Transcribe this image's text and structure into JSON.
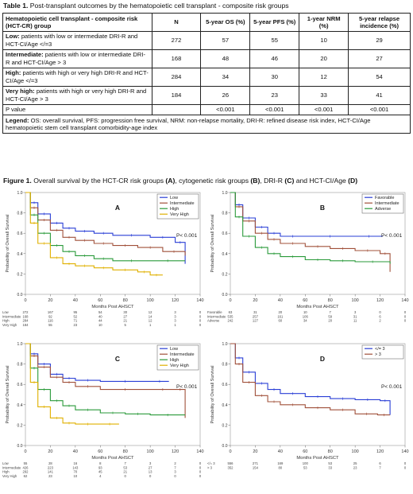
{
  "table": {
    "caption_label": "Table 1.",
    "caption_text": " Post-transplant outcomes by the hematopoietic cell transplant - composite risk groups",
    "headers": [
      "Hematopoietic cell transplant - composite risk (HCT-CR) group",
      "N",
      "5-year OS (%)",
      "5-year PFS (%)",
      "1-year NRM (%)",
      "5-year relapse incidence (%)"
    ],
    "rows": [
      {
        "label": "Low:",
        "desc": " patients with low or intermediate DRI-R and HCT-CI/Age </=3",
        "cells": [
          "272",
          "57",
          "55",
          "10",
          "29"
        ]
      },
      {
        "label": "Intermediate:",
        "desc": " patients with low or intermediate DRI-R and HCT-CI/Age > 3",
        "cells": [
          "168",
          "48",
          "46",
          "20",
          "27"
        ]
      },
      {
        "label": "High:",
        "desc": " patients with high or very high DRI-R and HCT-CI/Age </=3",
        "cells": [
          "284",
          "34",
          "30",
          "12",
          "54"
        ]
      },
      {
        "label": "Very high:",
        "desc": " patients with high or very high DRI-R and HCT-CI/Age > 3",
        "cells": [
          "184",
          "26",
          "23",
          "33",
          "41"
        ]
      },
      {
        "label": "",
        "desc": "P value",
        "cells": [
          "",
          "<0.001",
          "<0.001",
          "<0.001",
          "<0.001"
        ]
      }
    ],
    "legend_label": "Legend:",
    "legend_text": " OS: overall survival, PFS: progression free survival, NRM: non-relapse mortality, DRI-R: refined disease risk index, HCT-CI/Age hematopoietic stem cell transplant comorbidity-age index"
  },
  "figure": {
    "caption_label": "Figure 1.",
    "caption_text": " Overall survival by the HCT-CR risk groups ",
    "caption_parts": [
      {
        "t": "(A)",
        "b": true
      },
      {
        "t": ", cytogenetic risk groups ",
        "b": false
      },
      {
        "t": "(B)",
        "b": true
      },
      {
        "t": ", DRI-R ",
        "b": false
      },
      {
        "t": "(C)",
        "b": true
      },
      {
        "t": " and HCT-CI/Age ",
        "b": false
      },
      {
        "t": "(D)",
        "b": true
      }
    ]
  },
  "chart_data": [
    {
      "type": "line",
      "panel": "A",
      "ylabel": "Probability of Overall Survival",
      "xlabel": "Months Post AHSCT",
      "x_ticks": [
        "0",
        "20",
        "40",
        "60",
        "80",
        "100",
        "120",
        "140"
      ],
      "y_ticks": [
        "0.0",
        "0.2",
        "0.4",
        "0.6",
        "0.8",
        "1.0"
      ],
      "xlim": [
        0,
        140
      ],
      "ylim": [
        0,
        1
      ],
      "pvalue": "P< 0.001",
      "legend_position": "top-right",
      "series": [
        {
          "name": "Low",
          "color": "#2a3fd6",
          "points": [
            [
              0,
              1
            ],
            [
              4,
              0.9
            ],
            [
              10,
              0.79
            ],
            [
              20,
              0.7
            ],
            [
              30,
              0.65
            ],
            [
              40,
              0.62
            ],
            [
              55,
              0.6
            ],
            [
              70,
              0.58
            ],
            [
              100,
              0.56
            ],
            [
              120,
              0.51
            ],
            [
              128,
              0.3
            ]
          ]
        },
        {
          "name": "Intermediate",
          "color": "#a0503a",
          "points": [
            [
              0,
              1
            ],
            [
              4,
              0.85
            ],
            [
              10,
              0.73
            ],
            [
              20,
              0.63
            ],
            [
              30,
              0.56
            ],
            [
              40,
              0.53
            ],
            [
              55,
              0.5
            ],
            [
              70,
              0.48
            ],
            [
              90,
              0.46
            ],
            [
              110,
              0.42
            ],
            [
              128,
              0.38
            ]
          ]
        },
        {
          "name": "High",
          "color": "#2a9a3a",
          "points": [
            [
              0,
              1
            ],
            [
              4,
              0.78
            ],
            [
              10,
              0.6
            ],
            [
              20,
              0.48
            ],
            [
              30,
              0.42
            ],
            [
              40,
              0.38
            ],
            [
              55,
              0.35
            ],
            [
              70,
              0.33
            ],
            [
              100,
              0.33
            ],
            [
              128,
              0.33
            ]
          ]
        },
        {
          "name": "Very High",
          "color": "#e0b000",
          "points": [
            [
              0,
              1
            ],
            [
              4,
              0.7
            ],
            [
              10,
              0.5
            ],
            [
              20,
              0.36
            ],
            [
              30,
              0.3
            ],
            [
              40,
              0.28
            ],
            [
              55,
              0.26
            ],
            [
              70,
              0.24
            ],
            [
              90,
              0.22
            ],
            [
              100,
              0.19
            ],
            [
              110,
              0.19
            ]
          ]
        }
      ],
      "risk_table": {
        "times": [
          "0",
          "20",
          "40",
          "60",
          "80",
          "100",
          "120",
          "140"
        ],
        "rows": [
          {
            "label": "Low",
            "counts": [
              "272",
              "167",
              "95",
              "54",
              "30",
              "12",
              "3",
              "0"
            ]
          },
          {
            "label": "Intermediate",
            "counts": [
              "168",
              "92",
              "52",
              "40",
              "27",
              "14",
              "3",
              "0"
            ]
          },
          {
            "label": "High",
            "counts": [
              "284",
              "116",
              "71",
              "44",
              "21",
              "12",
              "3",
              "0"
            ]
          },
          {
            "label": "Very High",
            "counts": [
              "184",
              "55",
              "23",
              "10",
              "5",
              "1",
              "1",
              "0"
            ]
          }
        ]
      }
    },
    {
      "type": "line",
      "panel": "B",
      "ylabel": "Probability of Overall Survival",
      "xlabel": "Months Post AHSCT",
      "x_ticks": [
        "0",
        "20",
        "40",
        "60",
        "80",
        "100",
        "120",
        "140"
      ],
      "y_ticks": [
        "0.0",
        "0.2",
        "0.4",
        "0.6",
        "0.8",
        "1.0"
      ],
      "xlim": [
        0,
        140
      ],
      "ylim": [
        0,
        1
      ],
      "pvalue": "P< 0.001",
      "legend_position": "top-right",
      "series": [
        {
          "name": "Favorable",
          "color": "#2a3fd6",
          "points": [
            [
              0,
              1
            ],
            [
              4,
              0.88
            ],
            [
              10,
              0.75
            ],
            [
              20,
              0.66
            ],
            [
              30,
              0.6
            ],
            [
              40,
              0.57
            ],
            [
              60,
              0.57
            ],
            [
              100,
              0.57
            ],
            [
              122,
              0.57
            ]
          ]
        },
        {
          "name": "Intermediate",
          "color": "#a0503a",
          "points": [
            [
              0,
              1
            ],
            [
              4,
              0.86
            ],
            [
              10,
              0.72
            ],
            [
              20,
              0.6
            ],
            [
              30,
              0.54
            ],
            [
              40,
              0.5
            ],
            [
              60,
              0.47
            ],
            [
              80,
              0.45
            ],
            [
              100,
              0.43
            ],
            [
              120,
              0.4
            ],
            [
              128,
              0.22
            ]
          ]
        },
        {
          "name": "Adverse",
          "color": "#2a9a3a",
          "points": [
            [
              0,
              1
            ],
            [
              4,
              0.76
            ],
            [
              10,
              0.57
            ],
            [
              20,
              0.46
            ],
            [
              30,
              0.4
            ],
            [
              40,
              0.37
            ],
            [
              60,
              0.34
            ],
            [
              80,
              0.33
            ],
            [
              100,
              0.32
            ],
            [
              128,
              0.3
            ]
          ]
        }
      ],
      "risk_table": {
        "times": [
          "0",
          "20",
          "40",
          "60",
          "80",
          "100",
          "120",
          "140"
        ],
        "rows": [
          {
            "label": "Favorable",
            "counts": [
              "63",
              "31",
              "20",
              "10",
              "7",
              "3",
              "0",
              "0"
            ]
          },
          {
            "label": "Intermediate",
            "counts": [
              "535",
              "257",
              "161",
              "106",
              "59",
              "31",
              "6",
              "0"
            ]
          },
          {
            "label": "Adverse",
            "counts": [
              "242",
              "127",
              "60",
              "34",
              "20",
              "11",
              "2",
              "0"
            ]
          }
        ]
      }
    },
    {
      "type": "line",
      "panel": "C",
      "ylabel": "Probability of Overall Survival",
      "xlabel": "Months Post AHSCT",
      "x_ticks": [
        "0",
        "20",
        "40",
        "60",
        "80",
        "100",
        "120",
        "140"
      ],
      "y_ticks": [
        "0.0",
        "0.2",
        "0.4",
        "0.6",
        "0.8",
        "1.0"
      ],
      "xlim": [
        0,
        140
      ],
      "ylim": [
        0,
        1
      ],
      "pvalue": "P< 0.001",
      "legend_position": "top-right",
      "series": [
        {
          "name": "Low",
          "color": "#2a3fd6",
          "points": [
            [
              0,
              1
            ],
            [
              4,
              0.9
            ],
            [
              10,
              0.8
            ],
            [
              20,
              0.7
            ],
            [
              30,
              0.66
            ],
            [
              40,
              0.64
            ],
            [
              60,
              0.63
            ],
            [
              100,
              0.63
            ],
            [
              115,
              0.63
            ]
          ]
        },
        {
          "name": "Intermediate",
          "color": "#a0503a",
          "points": [
            [
              0,
              1
            ],
            [
              4,
              0.88
            ],
            [
              10,
              0.77
            ],
            [
              20,
              0.67
            ],
            [
              30,
              0.62
            ],
            [
              40,
              0.58
            ],
            [
              60,
              0.55
            ],
            [
              100,
              0.55
            ],
            [
              120,
              0.55
            ],
            [
              128,
              0.27
            ]
          ]
        },
        {
          "name": "High",
          "color": "#2a9a3a",
          "points": [
            [
              0,
              1
            ],
            [
              4,
              0.76
            ],
            [
              10,
              0.55
            ],
            [
              20,
              0.44
            ],
            [
              30,
              0.39
            ],
            [
              40,
              0.35
            ],
            [
              60,
              0.32
            ],
            [
              80,
              0.31
            ],
            [
              100,
              0.3
            ],
            [
              128,
              0.3
            ]
          ]
        },
        {
          "name": "Very High",
          "color": "#e0b000",
          "points": [
            [
              0,
              1
            ],
            [
              4,
              0.62
            ],
            [
              10,
              0.38
            ],
            [
              20,
              0.27
            ],
            [
              30,
              0.22
            ],
            [
              40,
              0.21
            ],
            [
              60,
              0.21
            ],
            [
              75,
              0.21
            ]
          ]
        }
      ],
      "risk_table": {
        "times": [
          "0",
          "20",
          "40",
          "60",
          "80",
          "100",
          "120",
          "140"
        ],
        "rows": [
          {
            "label": "Low",
            "counts": [
              "55",
              "28",
              "16",
              "8",
              "7",
              "3",
              "2",
              "0"
            ]
          },
          {
            "label": "Intermediate",
            "counts": [
              "426",
              "223",
              "143",
              "93",
              "53",
              "27",
              "7",
              "0"
            ]
          },
          {
            "label": "High",
            "counts": [
              "292",
              "141",
              "70",
              "45",
              "21",
              "13",
              "3",
              "0"
            ]
          },
          {
            "label": "Very High",
            "counts": [
              "62",
              "23",
              "10",
              "4",
              "0",
              "0",
              "0",
              "0"
            ]
          }
        ]
      }
    },
    {
      "type": "line",
      "panel": "D",
      "ylabel": "Probability of Overall Survival",
      "xlabel": "Months Post AHSCT",
      "x_ticks": [
        "0",
        "20",
        "40",
        "60",
        "80",
        "100",
        "120",
        "140"
      ],
      "y_ticks": [
        "0.0",
        "0.2",
        "0.4",
        "0.6",
        "0.8",
        "1.0"
      ],
      "xlim": [
        0,
        140
      ],
      "ylim": [
        0,
        1
      ],
      "pvalue": "P< 0.001",
      "legend_position": "top-right",
      "series": [
        {
          "name": "</= 3",
          "color": "#2a3fd6",
          "points": [
            [
              0,
              1
            ],
            [
              4,
              0.86
            ],
            [
              10,
              0.72
            ],
            [
              20,
              0.61
            ],
            [
              30,
              0.55
            ],
            [
              40,
              0.51
            ],
            [
              60,
              0.48
            ],
            [
              80,
              0.46
            ],
            [
              100,
              0.45
            ],
            [
              120,
              0.44
            ],
            [
              128,
              0.3
            ]
          ]
        },
        {
          "name": "> 3",
          "color": "#a0503a",
          "points": [
            [
              0,
              1
            ],
            [
              4,
              0.8
            ],
            [
              10,
              0.62
            ],
            [
              20,
              0.49
            ],
            [
              30,
              0.43
            ],
            [
              40,
              0.4
            ],
            [
              60,
              0.37
            ],
            [
              80,
              0.35
            ],
            [
              100,
              0.31
            ],
            [
              118,
              0.3
            ],
            [
              128,
              0.3
            ]
          ]
        }
      ],
      "risk_table": {
        "times": [
          "0",
          "20",
          "40",
          "60",
          "80",
          "100",
          "120",
          "140"
        ],
        "rows": [
          {
            "label": "</= 3",
            "counts": [
              "556",
              "271",
              "169",
              "100",
              "53",
              "25",
              "6",
              "0"
            ]
          },
          {
            "label": "> 3",
            "counts": [
              "352",
              "154",
              "80",
              "53",
              "33",
              "23",
              "7",
              "0"
            ]
          }
        ]
      }
    }
  ]
}
